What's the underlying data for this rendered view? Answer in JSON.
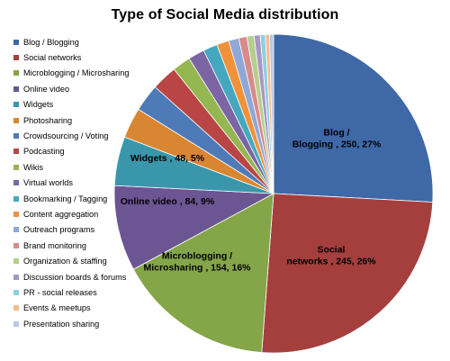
{
  "chart_data": {
    "type": "pie",
    "title": "Type of Social Media distribution",
    "legend_position": "left",
    "slices": [
      {
        "name": "Blog / Blogging",
        "value": 250,
        "percent": 27,
        "color": "#3f68a6",
        "label_lines": [
          "Blog /",
          "Blogging , 250, 27%"
        ]
      },
      {
        "name": "Social networks",
        "value": 245,
        "percent": 26,
        "color": "#a43f3e",
        "label_lines": [
          "Social",
          "networks , 245, 26%"
        ]
      },
      {
        "name": "Microblogging  / Microsharing",
        "value": 154,
        "percent": 16,
        "color": "#84a548",
        "label_lines": [
          "Microblogging /",
          "Microsharing , 154, 16%"
        ]
      },
      {
        "name": "Online video",
        "value": 84,
        "percent": 9,
        "color": "#6c5593",
        "label_lines": [
          "Online video , 84, 9%"
        ]
      },
      {
        "name": "Widgets",
        "value": 48,
        "percent": 5,
        "color": "#3a97ab",
        "label_lines": [
          "Widgets , 48, 5%"
        ]
      },
      {
        "name": "Photosharing",
        "value": 30,
        "color": "#d98632",
        "label_lines": []
      },
      {
        "name": "Crowdsourcing / Voting",
        "value": 27,
        "color": "#4f7ab8",
        "label_lines": []
      },
      {
        "name": "Podcasting",
        "value": 25,
        "color": "#b94644",
        "label_lines": []
      },
      {
        "name": "Wikis",
        "value": 18,
        "color": "#95b752",
        "label_lines": []
      },
      {
        "name": "Virtual worlds",
        "value": 16,
        "color": "#7c65a3",
        "label_lines": []
      },
      {
        "name": "Bookmarking / Tagging",
        "value": 14,
        "color": "#45a8c0",
        "label_lines": []
      },
      {
        "name": "Content aggregation",
        "value": 12,
        "color": "#f0923a",
        "label_lines": []
      },
      {
        "name": "Outreach programs",
        "value": 10,
        "color": "#8ea8d8",
        "label_lines": []
      },
      {
        "name": "Brand monitoring",
        "value": 8,
        "color": "#d98b89",
        "label_lines": []
      },
      {
        "name": "Organization & staffing",
        "value": 7,
        "color": "#b6ce8e",
        "label_lines": []
      },
      {
        "name": "Discussion boards & forums",
        "value": 6,
        "color": "#a897c4",
        "label_lines": []
      },
      {
        "name": "PR - social releases",
        "value": 5,
        "color": "#8fcfe0",
        "label_lines": []
      },
      {
        "name": "Events & meetups",
        "value": 4,
        "color": "#f6bc8c",
        "label_lines": []
      },
      {
        "name": "Presentation sharing",
        "value": 4,
        "color": "#b8c8e6",
        "label_lines": []
      }
    ]
  }
}
